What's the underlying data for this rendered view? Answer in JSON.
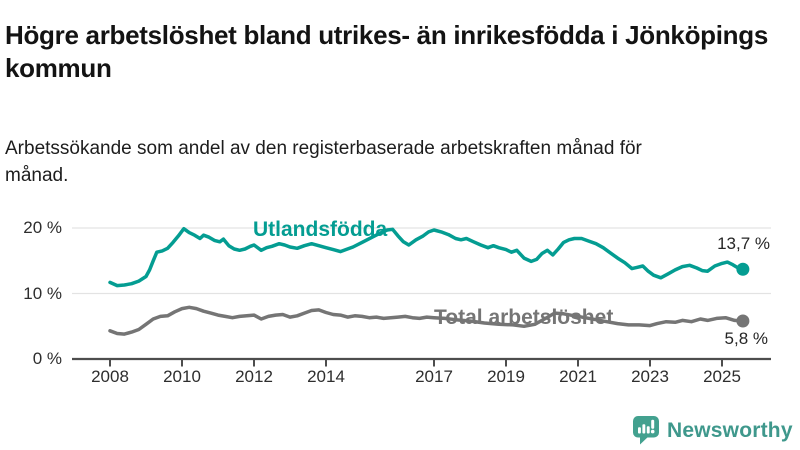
{
  "header": {
    "title": "Högre arbetslöshet bland utrikes- än inrikesfödda i Jönköpings kommun",
    "subtitle": "Arbetssökande som andel av den registerbaserade arbetskraften månad för månad."
  },
  "chart_data": {
    "type": "line",
    "title": "Högre arbetslöshet bland utrikes- än inrikesfödda i Jönköpings kommun",
    "xlabel": "",
    "ylabel": "",
    "ylim": [
      0,
      21
    ],
    "xlim": [
      2007.4,
      2026.4
    ],
    "grid": "horizontal",
    "legend_position": "inline-labels",
    "y_ticks": [
      {
        "value": 0,
        "label": "0 %"
      },
      {
        "value": 10,
        "label": "10 %"
      },
      {
        "value": 20,
        "label": "20 %"
      }
    ],
    "x_ticks": [
      {
        "value": 2008,
        "label": "2008"
      },
      {
        "value": 2010,
        "label": "2010"
      },
      {
        "value": 2012,
        "label": "2012"
      },
      {
        "value": 2014,
        "label": "2014"
      },
      {
        "value": 2017,
        "label": "2017"
      },
      {
        "value": 2019,
        "label": "2019"
      },
      {
        "value": 2021,
        "label": "2021"
      },
      {
        "value": 2023,
        "label": "2023"
      },
      {
        "value": 2025,
        "label": "2025"
      }
    ],
    "series": [
      {
        "name": "Utlandsfödda",
        "color": "#049d92",
        "end_label": "13,7 %",
        "end_value": 13.7,
        "x": [
          2008.0,
          2008.2,
          2008.4,
          2008.6,
          2008.8,
          2009.0,
          2009.1,
          2009.2,
          2009.3,
          2009.45,
          2009.6,
          2009.75,
          2009.9,
          2010.05,
          2010.2,
          2010.35,
          2010.5,
          2010.6,
          2010.75,
          2010.9,
          2011.05,
          2011.15,
          2011.3,
          2011.45,
          2011.6,
          2011.75,
          2011.9,
          2012.0,
          2012.2,
          2012.35,
          2012.5,
          2012.7,
          2012.85,
          2013.0,
          2013.2,
          2013.4,
          2013.6,
          2013.8,
          2014.0,
          2014.2,
          2014.4,
          2014.55,
          2014.75,
          2015.0,
          2015.25,
          2015.5,
          2015.7,
          2015.85,
          2016.0,
          2016.15,
          2016.3,
          2016.5,
          2016.7,
          2016.85,
          2017.0,
          2017.2,
          2017.4,
          2017.6,
          2017.75,
          2017.9,
          2018.1,
          2018.3,
          2018.5,
          2018.65,
          2018.8,
          2019.0,
          2019.15,
          2019.3,
          2019.5,
          2019.7,
          2019.85,
          2020.0,
          2020.15,
          2020.3,
          2020.45,
          2020.6,
          2020.75,
          2020.9,
          2021.1,
          2021.3,
          2021.5,
          2021.7,
          2021.9,
          2022.1,
          2022.3,
          2022.5,
          2022.65,
          2022.8,
          2022.95,
          2023.1,
          2023.3,
          2023.5,
          2023.7,
          2023.9,
          2024.1,
          2024.3,
          2024.45,
          2024.6,
          2024.8,
          2025.0,
          2025.15,
          2025.3,
          2025.45,
          2025.58
        ],
        "values": [
          11.7,
          11.2,
          11.3,
          11.5,
          11.9,
          12.6,
          13.6,
          15.0,
          16.3,
          16.5,
          16.9,
          17.8,
          18.8,
          19.9,
          19.3,
          18.9,
          18.4,
          18.9,
          18.6,
          18.1,
          17.9,
          18.3,
          17.3,
          16.8,
          16.6,
          16.8,
          17.2,
          17.4,
          16.6,
          17.0,
          17.2,
          17.6,
          17.4,
          17.1,
          16.9,
          17.3,
          17.6,
          17.3,
          17.0,
          16.7,
          16.4,
          16.7,
          17.1,
          17.8,
          18.5,
          19.2,
          19.7,
          19.8,
          18.8,
          17.9,
          17.4,
          18.2,
          18.8,
          19.4,
          19.7,
          19.4,
          19.0,
          18.4,
          18.2,
          18.4,
          17.9,
          17.4,
          17.0,
          17.3,
          17.0,
          16.7,
          16.3,
          16.6,
          15.4,
          14.9,
          15.2,
          16.1,
          16.6,
          15.9,
          16.8,
          17.8,
          18.2,
          18.4,
          18.4,
          18.0,
          17.6,
          17.0,
          16.2,
          15.4,
          14.7,
          13.8,
          14.0,
          14.2,
          13.4,
          12.8,
          12.4,
          13.0,
          13.6,
          14.1,
          14.3,
          13.9,
          13.5,
          13.4,
          14.2,
          14.6,
          14.8,
          14.4,
          13.9,
          13.7
        ]
      },
      {
        "name": "Total arbetslöshet",
        "color": "#757575",
        "end_label": "5,8 %",
        "end_value": 5.8,
        "x": [
          2008.0,
          2008.2,
          2008.4,
          2008.6,
          2008.8,
          2009.0,
          2009.2,
          2009.4,
          2009.6,
          2009.8,
          2010.0,
          2010.2,
          2010.4,
          2010.6,
          2010.8,
          2011.0,
          2011.2,
          2011.4,
          2011.6,
          2011.8,
          2012.0,
          2012.2,
          2012.4,
          2012.6,
          2012.8,
          2013.0,
          2013.2,
          2013.4,
          2013.6,
          2013.8,
          2014.0,
          2014.2,
          2014.4,
          2014.6,
          2014.8,
          2015.0,
          2015.2,
          2015.4,
          2015.6,
          2015.8,
          2016.0,
          2016.2,
          2016.4,
          2016.6,
          2016.8,
          2017.0,
          2017.3,
          2017.6,
          2018.0,
          2018.4,
          2018.8,
          2019.2,
          2019.5,
          2019.8,
          2020.1,
          2020.35,
          2020.6,
          2020.9,
          2021.2,
          2021.5,
          2021.8,
          2022.1,
          2022.4,
          2022.7,
          2023.0,
          2023.2,
          2023.45,
          2023.7,
          2023.9,
          2024.15,
          2024.4,
          2024.6,
          2024.85,
          2025.1,
          2025.35,
          2025.58
        ],
        "values": [
          4.3,
          3.9,
          3.8,
          4.1,
          4.5,
          5.3,
          6.1,
          6.5,
          6.6,
          7.2,
          7.7,
          7.9,
          7.7,
          7.3,
          7.0,
          6.7,
          6.5,
          6.3,
          6.5,
          6.6,
          6.7,
          6.1,
          6.5,
          6.7,
          6.8,
          6.4,
          6.6,
          7.0,
          7.4,
          7.5,
          7.1,
          6.8,
          6.7,
          6.4,
          6.6,
          6.5,
          6.3,
          6.4,
          6.2,
          6.3,
          6.4,
          6.5,
          6.3,
          6.2,
          6.4,
          6.3,
          6.2,
          6.0,
          5.8,
          5.5,
          5.3,
          5.2,
          5.0,
          5.3,
          6.2,
          7.0,
          6.9,
          6.6,
          6.3,
          6.0,
          5.7,
          5.4,
          5.2,
          5.2,
          5.1,
          5.4,
          5.7,
          5.6,
          5.9,
          5.7,
          6.1,
          5.9,
          6.2,
          6.3,
          5.9,
          5.8
        ]
      }
    ]
  },
  "footer": {
    "brand": "Newsworthy",
    "brand_color": "#3f988c",
    "logo_color": "#43a18f"
  }
}
